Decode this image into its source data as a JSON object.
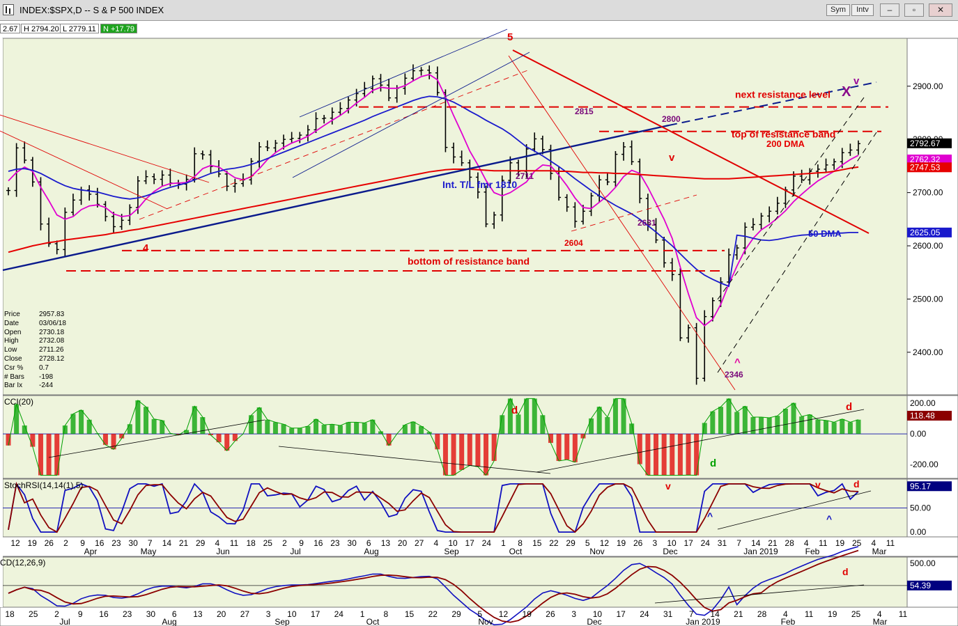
{
  "window": {
    "title": "INDEX:$SPX,D -- S & P 500 INDEX",
    "sym_label": "Sym",
    "intv_label": "Intv",
    "minimize": "–",
    "restore": "▫",
    "close": "✕"
  },
  "ohlc_readout": {
    "open": "2.67",
    "high": "H 2794.20",
    "low": "L 2779.11",
    "net": "N +17.79"
  },
  "info_box": [
    {
      "k": "Price",
      "v": "2957.83"
    },
    {
      "k": "Date",
      "v": "03/06/18"
    },
    {
      "k": "Open",
      "v": "2730.18"
    },
    {
      "k": "High",
      "v": "2732.08"
    },
    {
      "k": "Low",
      "v": "2711.26"
    },
    {
      "k": "Close",
      "v": "2728.12"
    },
    {
      "k": "Csr %",
      "v": "0.7"
    },
    {
      "k": "# Bars",
      "v": "-198"
    },
    {
      "k": "Bar Ix",
      "v": "-244"
    }
  ],
  "colors": {
    "panel_bg": "#eef4dc",
    "price_bar": "#000000",
    "sma200": "#e60000",
    "sma50": "#1a1acc",
    "sma_short": "#e000d0",
    "trendline_blue": "#0a1a8c",
    "resistance": "#e00000",
    "cci_pos": "#00a000",
    "cci_neg": "#e00000",
    "stoch_fast": "#1010c0",
    "stoch_slow": "#8b0000",
    "macd_line": "#1010c0",
    "macd_signal": "#8b0000"
  },
  "chart_data": [
    {
      "panel": "price",
      "type": "line",
      "ylim": [
        2320,
        2990
      ],
      "y_ticks": [
        "2900.00",
        "2800.00",
        "2700.00",
        "2600.00",
        "2500.00",
        "2400.00"
      ],
      "x_labels": [
        "12",
        "19",
        "26",
        "2",
        "9",
        "16",
        "23",
        "30",
        "7",
        "14",
        "21",
        "29",
        "4",
        "11",
        "18",
        "25",
        "2",
        "9",
        "16",
        "23",
        "30",
        "6",
        "13",
        "20",
        "27",
        "4",
        "10",
        "17",
        "24",
        "1",
        "8",
        "15",
        "22",
        "29",
        "5",
        "12",
        "19",
        "26",
        "3",
        "10",
        "17",
        "24",
        "31",
        "7",
        "14",
        "21",
        "28",
        "4",
        "11",
        "19",
        "25",
        "4",
        "11"
      ],
      "month_labels": [
        "Apr",
        "May",
        "Jun",
        "Jul",
        "Aug",
        "Sep",
        "Oct",
        "Nov",
        "Dec",
        "Jan 2019",
        "Feb",
        "Mar"
      ],
      "series": [
        {
          "name": "close",
          "values": [
            2704,
            2784,
            2761,
            2720,
            2641,
            2604,
            2593,
            2663,
            2686,
            2705,
            2697,
            2678,
            2655,
            2636,
            2648,
            2672,
            2722,
            2730,
            2725,
            2733,
            2718,
            2716,
            2725,
            2773,
            2771,
            2749,
            2735,
            2712,
            2717,
            2724,
            2759,
            2786,
            2784,
            2793,
            2800,
            2802,
            2808,
            2818,
            2839,
            2840,
            2851,
            2858,
            2874,
            2886,
            2896,
            2914,
            2902,
            2878,
            2896,
            2915,
            2929,
            2930,
            2925,
            2888,
            2785,
            2767,
            2756,
            2729,
            2701,
            2641,
            2658,
            2723,
            2756,
            2740,
            2782,
            2801,
            2781,
            2736,
            2691,
            2673,
            2646,
            2665,
            2694,
            2724,
            2720,
            2772,
            2786,
            2758,
            2689,
            2640,
            2611,
            2568,
            2546,
            2427,
            2446,
            2351,
            2467,
            2497,
            2532,
            2583,
            2596,
            2635,
            2640,
            2656,
            2665,
            2680,
            2705,
            2731,
            2724,
            2740,
            2744,
            2752,
            2758,
            2775,
            2780,
            2792
          ]
        },
        {
          "name": "ma_short",
          "values": [
            2722,
            2738,
            2748,
            2740,
            2710,
            2685,
            2658,
            2650,
            2655,
            2668,
            2675,
            2677,
            2672,
            2660,
            2655,
            2657,
            2670,
            2688,
            2702,
            2712,
            2717,
            2718,
            2719,
            2730,
            2745,
            2751,
            2748,
            2738,
            2728,
            2724,
            2730,
            2745,
            2762,
            2775,
            2785,
            2793,
            2799,
            2806,
            2816,
            2826,
            2836,
            2845,
            2856,
            2868,
            2879,
            2892,
            2898,
            2896,
            2896,
            2901,
            2910,
            2918,
            2922,
            2912,
            2880,
            2845,
            2812,
            2778,
            2752,
            2723,
            2700,
            2694,
            2700,
            2710,
            2720,
            2740,
            2752,
            2750,
            2733,
            2713,
            2690,
            2672,
            2670,
            2682,
            2694,
            2710,
            2730,
            2742,
            2736,
            2710,
            2680,
            2650,
            2614,
            2560,
            2510,
            2465,
            2450,
            2462,
            2490,
            2528,
            2562,
            2592,
            2614,
            2630,
            2640,
            2652,
            2666,
            2683,
            2697,
            2710,
            2722,
            2731,
            2740,
            2752,
            2762,
            2770
          ]
        },
        {
          "name": "50 DMA",
          "values": [
            2740,
            2744,
            2745,
            2742,
            2736,
            2728,
            2720,
            2713,
            2708,
            2705,
            2703,
            2701,
            2697,
            2693,
            2690,
            2688,
            2690,
            2694,
            2699,
            2705,
            2710,
            2714,
            2718,
            2724,
            2730,
            2736,
            2740,
            2744,
            2746,
            2749,
            2753,
            2758,
            2764,
            2770,
            2776,
            2782,
            2788,
            2794,
            2800,
            2806,
            2812,
            2818,
            2824,
            2830,
            2836,
            2843,
            2849,
            2855,
            2861,
            2867,
            2873,
            2878,
            2881,
            2880,
            2876,
            2870,
            2862,
            2853,
            2845,
            2836,
            2828,
            2820,
            2810,
            2798,
            2786,
            2778,
            2769,
            2759,
            2749,
            2738,
            2726,
            2715,
            2704,
            2694,
            2685,
            2676,
            2668,
            2660,
            2650,
            2638,
            2626,
            2613,
            2600,
            2585,
            2570,
            2556,
            2545,
            2537,
            2530,
            2524,
            2620,
            2618,
            2614,
            2611,
            2610,
            2612,
            2615,
            2618,
            2620,
            2621,
            2622,
            2623,
            2624,
            2624,
            2625,
            2625
          ]
        },
        {
          "name": "200 DMA",
          "values": [
            2588,
            2592,
            2596,
            2600,
            2603,
            2606,
            2608,
            2611,
            2613,
            2615,
            2617,
            2619,
            2621,
            2624,
            2626,
            2629,
            2631,
            2634,
            2637,
            2640,
            2643,
            2646,
            2649,
            2652,
            2655,
            2658,
            2661,
            2664,
            2667,
            2670,
            2673,
            2676,
            2679,
            2682,
            2685,
            2688,
            2691,
            2694,
            2697,
            2700,
            2703,
            2706,
            2709,
            2712,
            2715,
            2718,
            2721,
            2724,
            2727,
            2730,
            2733,
            2736,
            2739,
            2741,
            2743,
            2744,
            2744,
            2744,
            2743,
            2742,
            2741,
            2741,
            2741,
            2741,
            2741,
            2741,
            2741,
            2741,
            2740,
            2740,
            2739,
            2738,
            2738,
            2737,
            2737,
            2736,
            2736,
            2735,
            2734,
            2733,
            2732,
            2731,
            2730,
            2729,
            2728,
            2727,
            2726,
            2726,
            2726,
            2726,
            2727,
            2728,
            2729,
            2730,
            2731,
            2732,
            2733,
            2734,
            2735,
            2736,
            2737,
            2738,
            2740,
            2743,
            2746,
            2748
          ]
        }
      ],
      "levels": [
        {
          "label": "next resistance level",
          "value": 2861
        },
        {
          "label": "top of resistance band",
          "value": 2815
        },
        {
          "label": "bottom of resistance band",
          "value": 2591
        },
        {
          "label": "",
          "value": 2553
        }
      ],
      "annotations": [
        "5",
        "4",
        "2815",
        "2800",
        "2711",
        "2604",
        "2631",
        "2346",
        "Int. T/L fmr 1810",
        "200 DMA",
        "50 DMA",
        "v",
        "^",
        "X"
      ],
      "price_badges": [
        {
          "label": "2792.67",
          "value": 2792.67
        },
        {
          "label": "2762.32",
          "value": 2762.32
        },
        {
          "label": "2747.53",
          "value": 2747.53
        },
        {
          "label": "2625.05",
          "value": 2625.05
        }
      ]
    },
    {
      "panel": "cci",
      "type": "bar",
      "title": "CCI(20)",
      "ylim": [
        -290,
        250
      ],
      "y_ticks": [
        "200.00",
        "0.00",
        "-200.00"
      ],
      "last_value_label": "118.48",
      "annotations": [
        "d",
        "d",
        "d"
      ]
    },
    {
      "panel": "stochrsi",
      "type": "line",
      "title": "StochRSI(14,14(1),5)",
      "ylim": [
        -10,
        110
      ],
      "y_ticks": [
        "50.00",
        "0.00"
      ],
      "last_value_label": "95.17",
      "annotations": [
        "v",
        "v",
        "d",
        "^",
        "^"
      ]
    },
    {
      "panel": "macd",
      "type": "line",
      "title": "CD(12,26,9)",
      "y_ticks": [
        "500.00"
      ],
      "last_value_label": "54.39",
      "annotations": [
        "d"
      ],
      "x_labels": [
        "18",
        "25",
        "2",
        "9",
        "16",
        "23",
        "30",
        "6",
        "13",
        "20",
        "27",
        "3",
        "10",
        "17",
        "24",
        "1",
        "8",
        "15",
        "22",
        "29",
        "5",
        "12",
        "19",
        "26",
        "3",
        "10",
        "17",
        "24",
        "31",
        "7",
        "14",
        "21",
        "28",
        "4",
        "11",
        "19",
        "25",
        "4",
        "11"
      ],
      "month_labels": [
        "Jul",
        "Aug",
        "Sep",
        "Oct",
        "Nov",
        "Dec",
        "Jan 2019",
        "Feb",
        "Mar"
      ]
    }
  ]
}
